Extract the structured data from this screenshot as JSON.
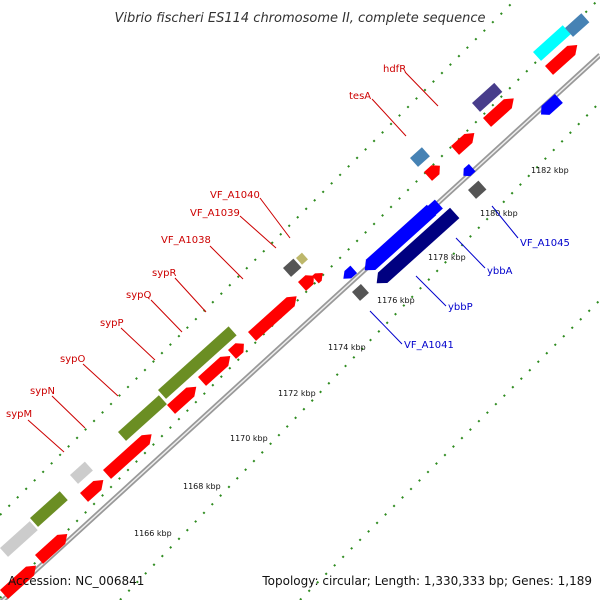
{
  "title": "Vibrio fischeri ES114 chromosome II, complete sequence",
  "footer": {
    "accession": "Accession: NC_006841",
    "summary": "Topology: circular; Length: 1,330,333 bp; Genes: 1,189"
  },
  "colors": {
    "backbone": "#b8b8b8",
    "dots": "#2e8b1f",
    "forward_label": "#cc0000",
    "reverse_label": "#0000cc",
    "red_gene": "#ff0000",
    "blue_gene": "#0000ff",
    "navy_gene": "#000080",
    "olive_gene": "#6b8e23",
    "gray_gene": "#808080",
    "lightgray_gene": "#cccccc",
    "steelblue_gene": "#4682b4",
    "slateblue_gene": "#483d8b",
    "tan_gene": "#bdb76b",
    "cyan_gene": "#00ffff"
  },
  "ticks": [
    "1166 kbp",
    "1168 kbp",
    "1170 kbp",
    "1172 kbp",
    "1174 kbp",
    "1176 kbp",
    "1178 kbp",
    "1180 kbp",
    "1182 kbp"
  ],
  "gene_labels": {
    "forward": [
      "sypM",
      "sypN",
      "sypO",
      "sypP",
      "sypQ",
      "sypR",
      "VF_A1038",
      "VF_A1039",
      "VF_A1040",
      "tesA",
      "hdfR"
    ],
    "reverse": [
      "VF_A1041",
      "ybbP",
      "ybbA",
      "VF_A1045"
    ]
  }
}
